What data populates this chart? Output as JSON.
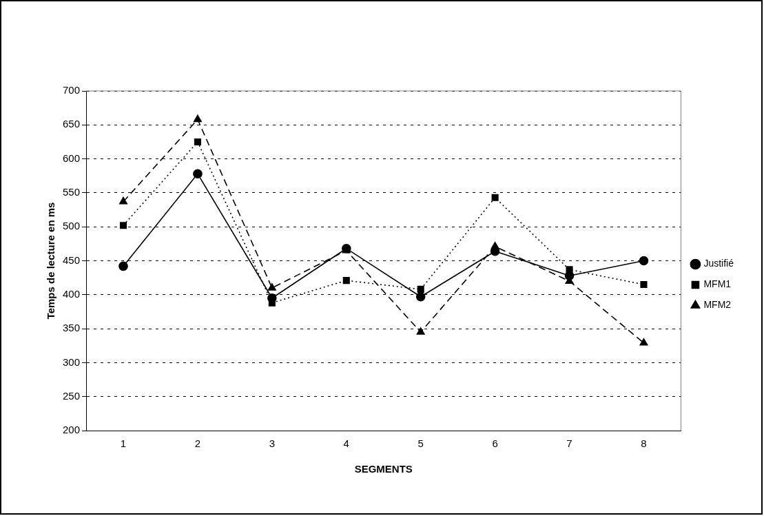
{
  "chart_data": {
    "type": "line",
    "xlabel": "SEGMENTS",
    "ylabel": "Temps de lecture en ms",
    "categories": [
      "1",
      "2",
      "3",
      "4",
      "5",
      "6",
      "7",
      "8"
    ],
    "series": [
      {
        "name": "Justifié",
        "color": "#000000",
        "marker": "circle",
        "line_style": "solid",
        "values": [
          442,
          578,
          395,
          468,
          397,
          464,
          428,
          450
        ]
      },
      {
        "name": "MFM1",
        "color": "#000000",
        "marker": "square",
        "line_style": "dotted",
        "values": [
          502,
          625,
          388,
          421,
          408,
          543,
          437,
          415
        ]
      },
      {
        "name": "MFM2",
        "color": "#000000",
        "marker": "triangle",
        "line_style": "dashed",
        "values": [
          537,
          658,
          410,
          465,
          345,
          471,
          420,
          329
        ]
      }
    ],
    "ylim": [
      200,
      700
    ],
    "yticks": [
      200,
      250,
      300,
      350,
      400,
      450,
      500,
      550,
      600,
      650,
      700
    ],
    "grid": "y",
    "legend": "right"
  }
}
